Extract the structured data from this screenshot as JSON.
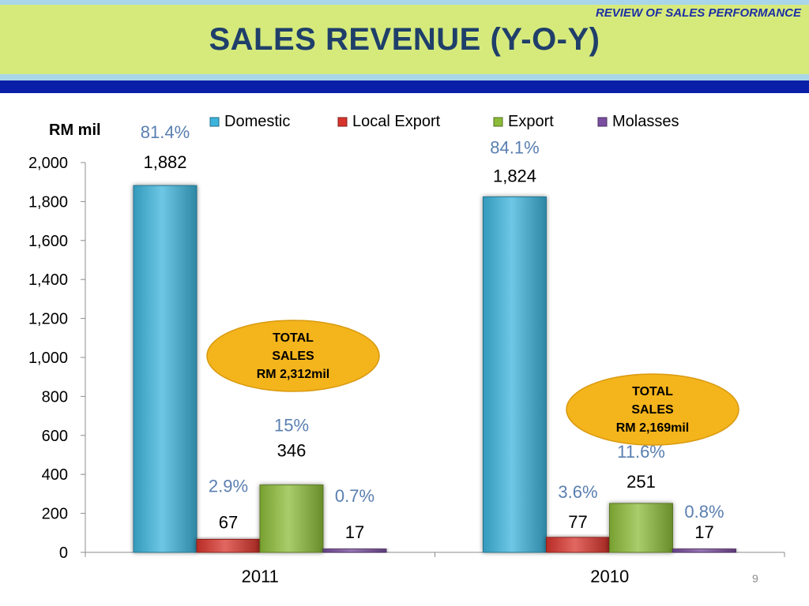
{
  "slide": {
    "section_tag": "REVIEW OF SALES PERFORMANCE",
    "title": "SALES REVENUE (Y-O-Y)",
    "page_number": "9"
  },
  "colors": {
    "Domestic": "#3cb4dc",
    "Local Export": "#d8342c",
    "Export": "#8cbc38",
    "Molasses": "#7a4ea0",
    "percent_label": "#5a7fb0",
    "callout_fill": "#f4b41c"
  },
  "chart_data": {
    "type": "bar",
    "ylabel": "RM mil",
    "ylim": [
      0,
      2000
    ],
    "yticks": [
      "0",
      "200",
      "400",
      "600",
      "800",
      "1,000",
      "1,200",
      "1,400",
      "1,600",
      "1,800",
      "2,000"
    ],
    "legend_position": "top",
    "categories": [
      "2011",
      "2010"
    ],
    "series": [
      {
        "name": "Domestic",
        "values": [
          1882,
          1824
        ],
        "value_labels": [
          "1,882",
          "1,824"
        ],
        "share_labels": [
          "81.4%",
          "84.1%"
        ]
      },
      {
        "name": "Local Export",
        "values": [
          67,
          77
        ],
        "value_labels": [
          "67",
          "77"
        ],
        "share_labels": [
          "2.9%",
          "3.6%"
        ]
      },
      {
        "name": "Export",
        "values": [
          346,
          251
        ],
        "value_labels": [
          "346",
          "251"
        ],
        "share_labels": [
          "15%",
          "11.6%"
        ]
      },
      {
        "name": "Molasses",
        "values": [
          17,
          17
        ],
        "value_labels": [
          "17",
          "17"
        ],
        "share_labels": [
          "0.7%",
          "0.8%"
        ]
      }
    ],
    "callouts": [
      {
        "lines": [
          "TOTAL",
          "SALES",
          "RM 2,312mil"
        ]
      },
      {
        "lines": [
          "TOTAL",
          "SALES",
          "RM 2,169mil"
        ]
      }
    ]
  }
}
